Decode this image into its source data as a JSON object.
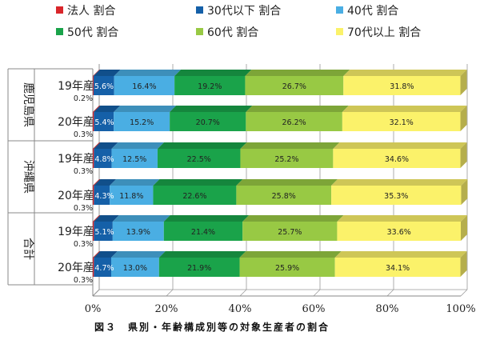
{
  "caption": "図３　県別・年齢構成別等の対象生産者の割合",
  "chart_data": {
    "type": "bar",
    "orientation": "horizontal",
    "stacked": "percent",
    "groups": [
      {
        "name": "鹿児島県",
        "rows": [
          "19年産",
          "20年産"
        ]
      },
      {
        "name": "沖縄県",
        "rows": [
          "19年産",
          "20年産"
        ]
      },
      {
        "name": "合計",
        "rows": [
          "19年産",
          "20年産"
        ]
      }
    ],
    "series": [
      {
        "name": "法人 割合",
        "color": "#d9262b",
        "values": [
          0.2,
          0.3,
          0.3,
          0.3,
          0.3,
          0.3
        ],
        "labels": [
          "0.2%",
          "0.3%",
          "0.3%",
          "0.3%",
          "0.3%",
          "0.3%"
        ]
      },
      {
        "name": "30代以下 割合",
        "color": "#1560a8",
        "values": [
          5.6,
          5.4,
          4.8,
          4.3,
          5.1,
          4.7
        ],
        "labels": [
          "5.6%",
          "5.4%",
          "4.8%",
          "4.3%",
          "5.1%",
          "4.7%"
        ]
      },
      {
        "name": "40代 割合",
        "color": "#4aaee3",
        "values": [
          16.4,
          15.2,
          12.5,
          11.8,
          13.9,
          13.0
        ],
        "labels": [
          "16.4%",
          "15.2%",
          "12.5%",
          "11.8%",
          "13.9%",
          "13.0%"
        ]
      },
      {
        "name": "50代 割合",
        "color": "#1aa34a",
        "values": [
          19.2,
          20.7,
          22.5,
          22.6,
          21.4,
          21.9
        ],
        "labels": [
          "19.2%",
          "20.7%",
          "22.5%",
          "22.6%",
          "21.4%",
          "21.9%"
        ]
      },
      {
        "name": "60代 割合",
        "color": "#98c944",
        "values": [
          26.7,
          26.2,
          25.2,
          25.8,
          25.7,
          25.9
        ],
        "labels": [
          "26.7%",
          "26.2%",
          "25.2%",
          "25.8%",
          "25.7%",
          "25.9%"
        ]
      },
      {
        "name": "70代以上 割合",
        "color": "#fbf26a",
        "values": [
          31.8,
          32.1,
          34.6,
          35.3,
          33.6,
          34.1
        ],
        "labels": [
          "31.8%",
          "32.1%",
          "34.6%",
          "35.3%",
          "33.6%",
          "34.1%"
        ]
      }
    ],
    "xlim": [
      0,
      100
    ],
    "xticks": [
      "0%",
      "20%",
      "40%",
      "60%",
      "80%",
      "100%"
    ],
    "legend_position": "top",
    "grid": true
  }
}
